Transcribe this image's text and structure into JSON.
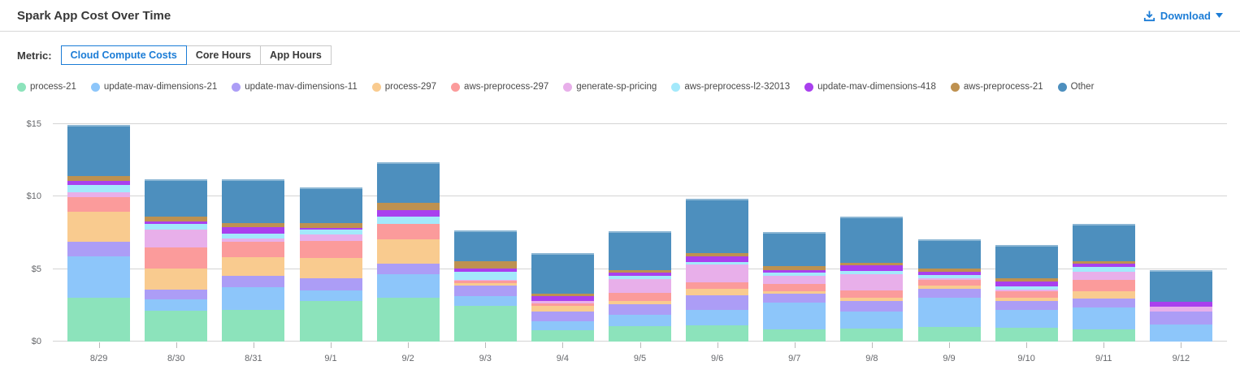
{
  "header": {
    "title": "Spark App Cost Over Time",
    "download_label": "Download",
    "download_icon": "download-tray-arrow",
    "caret_icon": "chevron-down"
  },
  "controls": {
    "metric_label": "Metric:",
    "tabs": [
      {
        "label": "Cloud Compute Costs",
        "active": true
      },
      {
        "label": "Core Hours",
        "active": false
      },
      {
        "label": "App Hours",
        "active": false
      }
    ]
  },
  "colors": {
    "accent_blue": "#1b7cd6",
    "grid": "#d4d4d4",
    "axis_text": "#65676b",
    "title_text": "#383838"
  },
  "chart_data": {
    "type": "bar",
    "stacked": true,
    "title": "Spark App Cost Over Time",
    "xlabel": "",
    "ylabel": "",
    "ylim": [
      0,
      15
    ],
    "grid": true,
    "legend_position": "top",
    "yticks": [
      {
        "value": 0,
        "label": "$0"
      },
      {
        "value": 5,
        "label": "$5"
      },
      {
        "value": 10,
        "label": "$10"
      },
      {
        "value": 15,
        "label": "$15"
      }
    ],
    "categories": [
      "8/29",
      "8/30",
      "8/31",
      "9/1",
      "9/2",
      "9/3",
      "9/4",
      "9/5",
      "9/6",
      "9/7",
      "9/8",
      "9/9",
      "9/10",
      "9/11",
      "9/12"
    ],
    "series": [
      {
        "name": "process-21",
        "color": "#8CE3BB",
        "values": [
          3.05,
          2.1,
          2.2,
          2.8,
          3.05,
          2.45,
          0.8,
          1.05,
          1.1,
          0.85,
          0.9,
          1.0,
          0.95,
          0.85,
          0.0
        ]
      },
      {
        "name": "update-mav-dimensions-21",
        "color": "#8DC6FA",
        "values": [
          2.85,
          0.8,
          1.55,
          0.7,
          1.6,
          0.7,
          0.6,
          0.8,
          1.1,
          1.85,
          1.15,
          2.05,
          1.25,
          1.5,
          1.2
        ]
      },
      {
        "name": "update-mav-dimensions-11",
        "color": "#AC9DF6",
        "values": [
          1.0,
          0.7,
          0.8,
          0.85,
          0.7,
          0.7,
          0.7,
          0.75,
          1.0,
          0.6,
          0.75,
          0.6,
          0.6,
          0.6,
          0.85
        ]
      },
      {
        "name": "process-297",
        "color": "#F9CB8F",
        "values": [
          2.05,
          1.45,
          1.25,
          1.4,
          1.7,
          0.2,
          0.35,
          0.2,
          0.45,
          0.2,
          0.25,
          0.2,
          0.25,
          0.55,
          0.0
        ]
      },
      {
        "name": "aws-preprocess-297",
        "color": "#FB9B9B",
        "values": [
          1.0,
          1.45,
          1.1,
          1.2,
          1.05,
          0.15,
          0.2,
          0.55,
          0.45,
          0.45,
          0.5,
          0.4,
          0.45,
          0.75,
          0.0
        ]
      },
      {
        "name": "generate-sp-pricing",
        "color": "#E8AFEA",
        "values": [
          0.35,
          1.25,
          0.2,
          0.45,
          0.0,
          0.05,
          0.15,
          0.95,
          1.2,
          0.6,
          1.1,
          0.1,
          0.1,
          0.55,
          0.35
        ]
      },
      {
        "name": "aws-preprocess-l2-32013",
        "color": "#A3E9FB",
        "values": [
          0.5,
          0.35,
          0.35,
          0.3,
          0.5,
          0.55,
          0.0,
          0.25,
          0.2,
          0.2,
          0.2,
          0.25,
          0.2,
          0.35,
          0.0
        ]
      },
      {
        "name": "update-mav-dimensions-418",
        "color": "#A940EE",
        "values": [
          0.3,
          0.2,
          0.45,
          0.15,
          0.45,
          0.25,
          0.35,
          0.2,
          0.4,
          0.2,
          0.4,
          0.2,
          0.35,
          0.2,
          0.35
        ]
      },
      {
        "name": "aws-preprocess-21",
        "color": "#BE9150",
        "values": [
          0.3,
          0.3,
          0.3,
          0.3,
          0.5,
          0.5,
          0.15,
          0.2,
          0.2,
          0.25,
          0.2,
          0.25,
          0.2,
          0.2,
          0.0
        ]
      },
      {
        "name": "Other",
        "color": "#4D8FBE",
        "values": [
          3.55,
          2.6,
          3.0,
          2.5,
          2.85,
          2.1,
          2.8,
          2.65,
          3.75,
          2.35,
          3.2,
          2.0,
          2.3,
          2.55,
          2.2
        ]
      }
    ]
  }
}
